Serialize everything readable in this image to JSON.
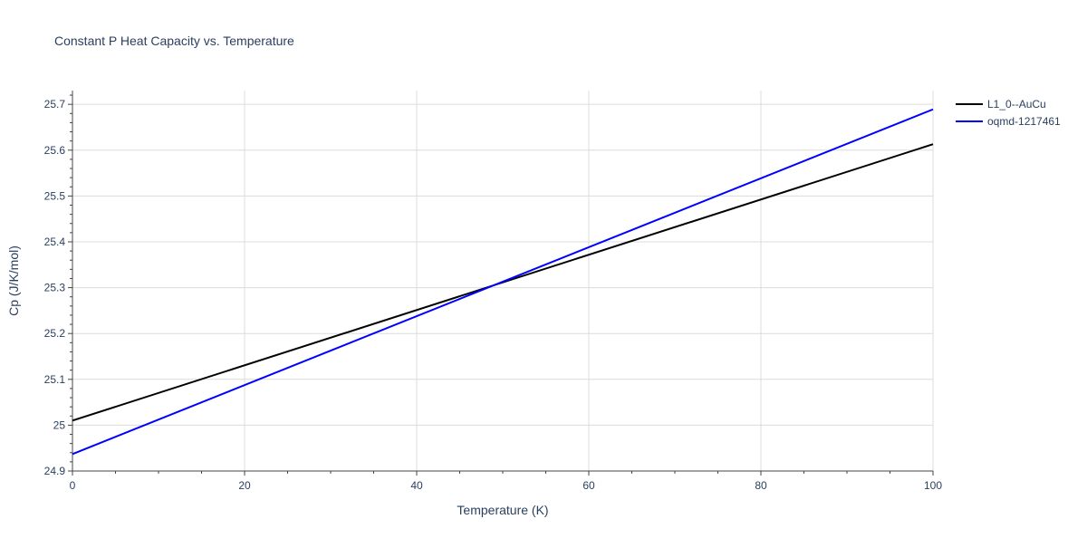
{
  "chart_data": {
    "type": "line",
    "title": "Constant P Heat Capacity vs. Temperature",
    "xlabel": "Temperature (K)",
    "ylabel": "Cp (J/K/mol)",
    "xlim": [
      0,
      100
    ],
    "ylim": [
      24.9,
      25.73
    ],
    "x_ticks": [
      0,
      20,
      40,
      60,
      80,
      100
    ],
    "y_ticks": [
      24.9,
      25,
      25.1,
      25.2,
      25.3,
      25.4,
      25.5,
      25.6,
      25.7
    ],
    "y_tick_labels": [
      "24.9",
      "25",
      "25.1",
      "25.2",
      "25.3",
      "25.4",
      "25.5",
      "25.6",
      "25.7"
    ],
    "grid": true,
    "legend_position": "top-right",
    "series": [
      {
        "name": "L1_0--AuCu",
        "color": "#000000",
        "x": [
          0,
          100
        ],
        "y": [
          25.01,
          25.613
        ]
      },
      {
        "name": "oqmd-1217461",
        "color": "#0000ff",
        "x": [
          0,
          100
        ],
        "y": [
          24.937,
          25.689
        ]
      }
    ]
  }
}
